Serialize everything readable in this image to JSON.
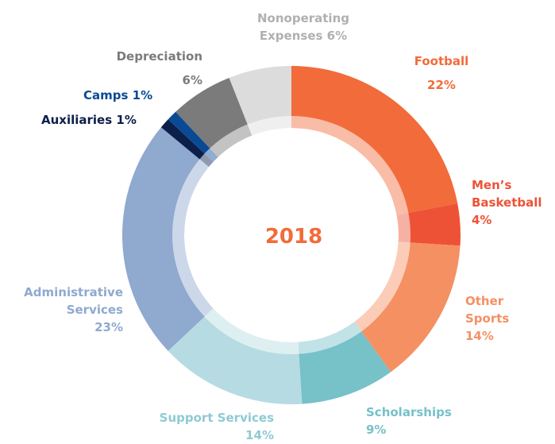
{
  "chart_data": {
    "type": "donut",
    "title": "2018",
    "categories": [
      "Football",
      "Men’s Basketball",
      "Other Sports",
      "Scholarships",
      "Support Services",
      "Administrative Services",
      "Auxiliaries",
      "Camps",
      "Depreciation",
      "Nonoperating Expenses"
    ],
    "values": [
      22,
      4,
      14,
      9,
      14,
      23,
      1,
      1,
      6,
      6
    ],
    "value_labels": [
      "22%",
      "4%",
      "14%",
      "9%",
      "14%",
      "23%",
      "1%",
      "1%",
      "6%",
      "6%"
    ],
    "colors": [
      "#f26b3a",
      "#ee5236",
      "#f59063",
      "#77c1c9",
      "#b7dbe2",
      "#8fa9cf",
      "#0b1f4a",
      "#0a4a94",
      "#7b7b7b",
      "#dcdcdc"
    ],
    "label_colors": [
      "#f26b3a",
      "#ee5236",
      "#f59063",
      "#77c1c9",
      "#8ecad4",
      "#8fa9cf",
      "#0b1f4a",
      "#0a4a94",
      "#7b7b7b",
      "#b0b0b0"
    ]
  }
}
